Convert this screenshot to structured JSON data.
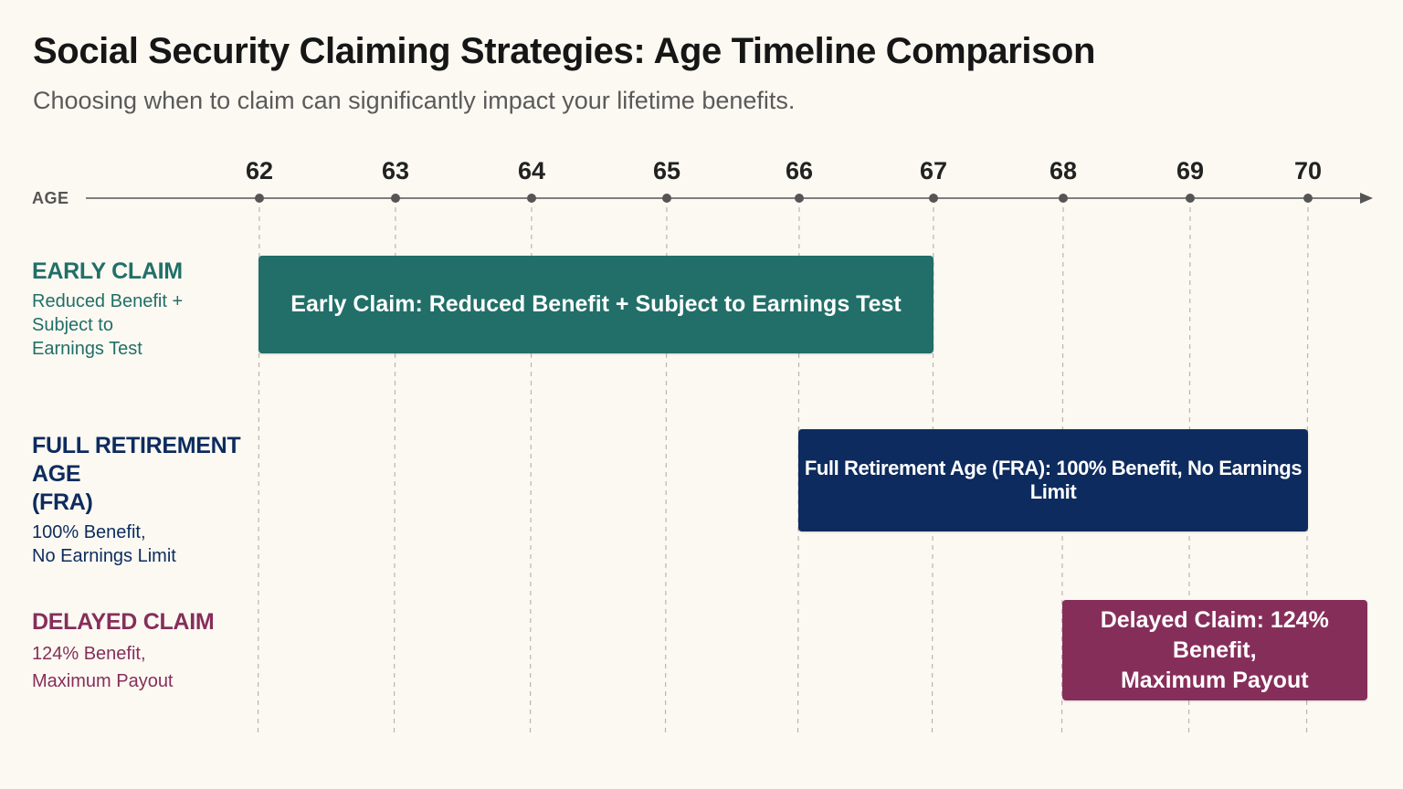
{
  "header": {
    "title": "Social Security Claiming Strategies: Age Timeline Comparison",
    "subtitle": "Choosing when to claim can significantly impact your lifetime benefits."
  },
  "axis": {
    "label": "AGE",
    "ticks": [
      "62",
      "63",
      "64",
      "65",
      "66",
      "67",
      "68",
      "69",
      "70"
    ]
  },
  "rows": [
    {
      "name": "EARLY CLAIM",
      "description_lines": [
        "Reduced Benefit +",
        "Subject to",
        "Earnings Test"
      ],
      "bar_lines": [
        "Early Claim: Reduced Benefit + Subject to Earnings Test"
      ],
      "start_age": 62,
      "end_age": 67,
      "color": "#216f68"
    },
    {
      "name_lines": [
        "FULL RETIREMENT AGE",
        "(FRA)"
      ],
      "description_lines": [
        "100% Benefit,",
        "No Earnings Limit"
      ],
      "bar_lines": [
        "Full Retirement Age (FRA): 100% Benefit, No Earnings Limit"
      ],
      "start_age": 66,
      "end_age": 70,
      "color": "#0d2b5e"
    },
    {
      "name": "DELAYED CLAIM",
      "description_lines": [
        "124% Benefit,",
        "Maximum Payout"
      ],
      "bar_lines": [
        "Delayed Claim: 124% Benefit,",
        "Maximum Payout"
      ],
      "start_age": 68,
      "end_age": 70.5,
      "color": "#862e5a"
    }
  ]
}
